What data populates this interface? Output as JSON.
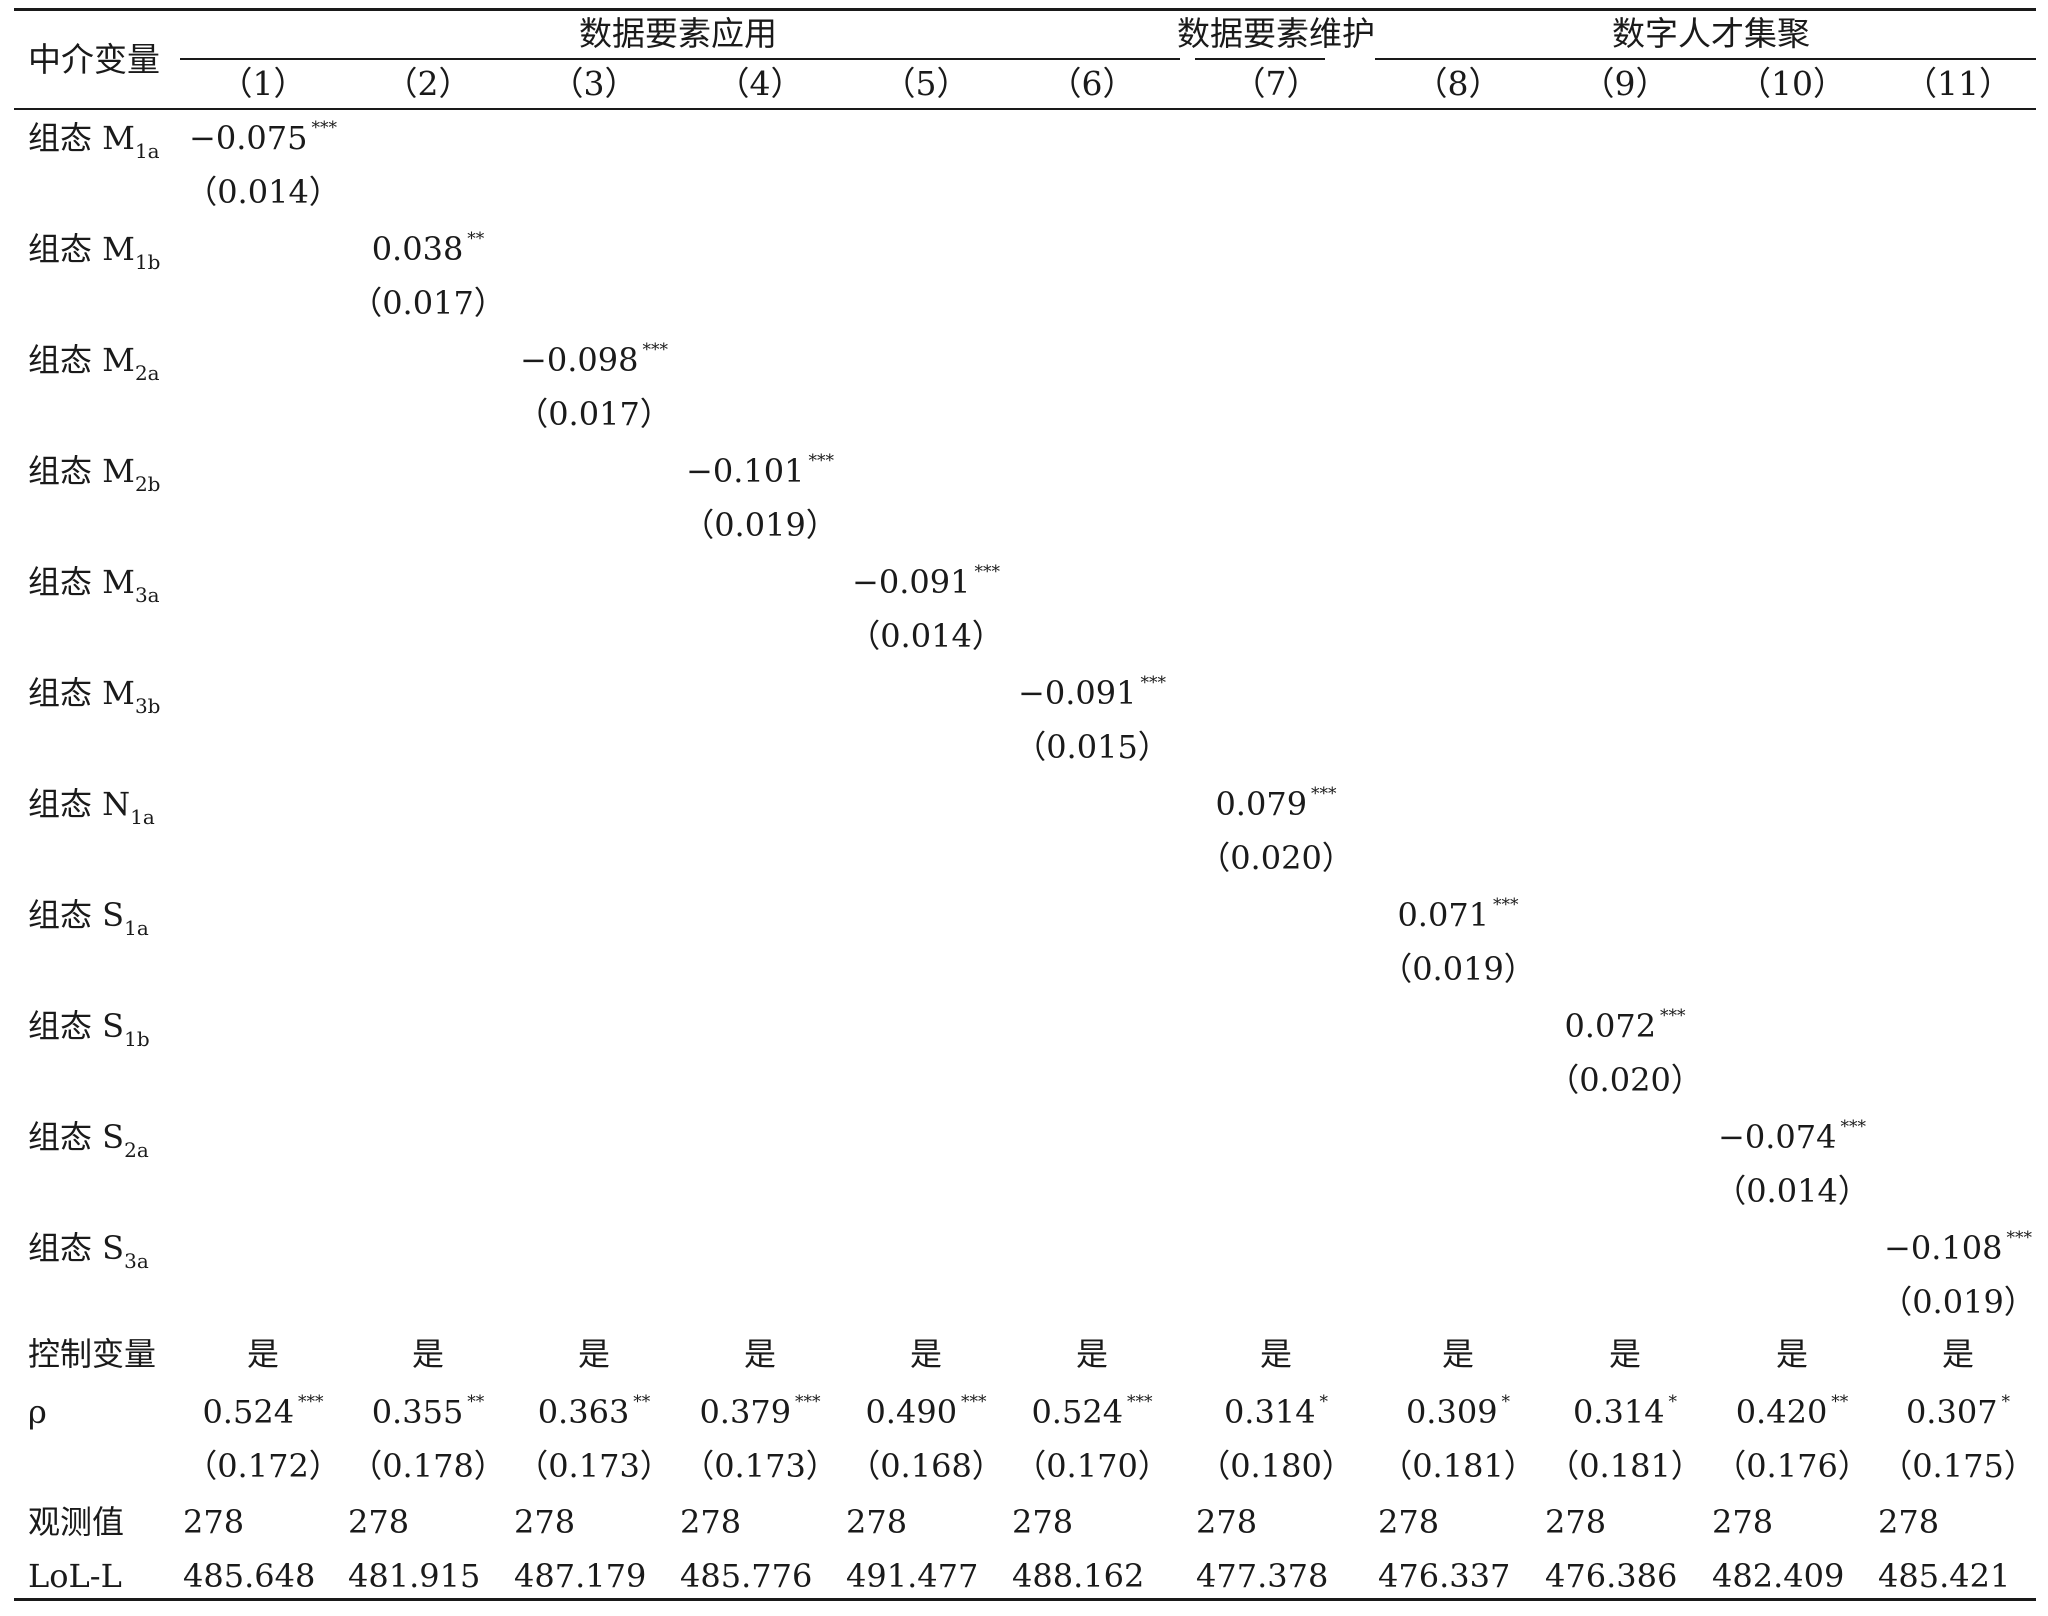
{
  "header": {
    "mediator_label": "中介变量",
    "groups": [
      "数据要素应用",
      "数据要素维护",
      "数字人才集聚"
    ],
    "columns": [
      "（1）",
      "（2）",
      "（3）",
      "（4）",
      "（5）",
      "（6）",
      "（7）",
      "（8）",
      "（9）",
      "（10）",
      "（11）"
    ]
  },
  "configs": [
    {
      "prefix": "组态 M",
      "sub": "1a",
      "coef": "−0.075",
      "stars": "***",
      "se": "（0.014）"
    },
    {
      "prefix": "组态 M",
      "sub": "1b",
      "coef": "0.038",
      "stars": "**",
      "se": "（0.017）"
    },
    {
      "prefix": "组态 M",
      "sub": "2a",
      "coef": "−0.098",
      "stars": "***",
      "se": "（0.017）"
    },
    {
      "prefix": "组态 M",
      "sub": "2b",
      "coef": "−0.101",
      "stars": "***",
      "se": "（0.019）"
    },
    {
      "prefix": "组态 M",
      "sub": "3a",
      "coef": "−0.091",
      "stars": "***",
      "se": "（0.014）"
    },
    {
      "prefix": "组态 M",
      "sub": "3b",
      "coef": "−0.091",
      "stars": "***",
      "se": "（0.015）"
    },
    {
      "prefix": "组态 N",
      "sub": "1a",
      "coef": "0.079",
      "stars": "***",
      "se": "（0.020）"
    },
    {
      "prefix": "组态 S",
      "sub": "1a",
      "coef": "0.071",
      "stars": "***",
      "se": "（0.019）"
    },
    {
      "prefix": "组态 S",
      "sub": "1b",
      "coef": "0.072",
      "stars": "***",
      "se": "（0.020）"
    },
    {
      "prefix": "组态 S",
      "sub": "2a",
      "coef": "−0.074",
      "stars": "***",
      "se": "（0.014）"
    },
    {
      "prefix": "组态 S",
      "sub": "3a",
      "coef": "−0.108",
      "stars": "***",
      "se": "（0.019）"
    }
  ],
  "controls": {
    "label": "控制变量",
    "values": [
      "是",
      "是",
      "是",
      "是",
      "是",
      "是",
      "是",
      "是",
      "是",
      "是",
      "是"
    ]
  },
  "rho": {
    "label": "ρ",
    "coefs": [
      "0.524",
      "0.355",
      "0.363",
      "0.379",
      "0.490",
      "0.524",
      "0.314",
      "0.309",
      "0.314",
      "0.420",
      "0.307"
    ],
    "stars": [
      "***",
      "**",
      "**",
      "***",
      "***",
      "***",
      "*",
      "*",
      "*",
      "**",
      "*"
    ],
    "ses": [
      "（0.172）",
      "（0.178）",
      "（0.173）",
      "（0.173）",
      "（0.168）",
      "（0.170）",
      "（0.180）",
      "（0.181）",
      "（0.181）",
      "（0.176）",
      "（0.175）"
    ]
  },
  "observations": {
    "label": "观测值",
    "values": [
      "278",
      "278",
      "278",
      "278",
      "278",
      "278",
      "278",
      "278",
      "278",
      "278",
      "278"
    ]
  },
  "loglik": {
    "label": "LoL-L",
    "values": [
      "485.648",
      "481.915",
      "487.179",
      "485.776",
      "491.477",
      "488.162",
      "477.378",
      "476.337",
      "476.386",
      "482.409",
      "485.421"
    ]
  }
}
